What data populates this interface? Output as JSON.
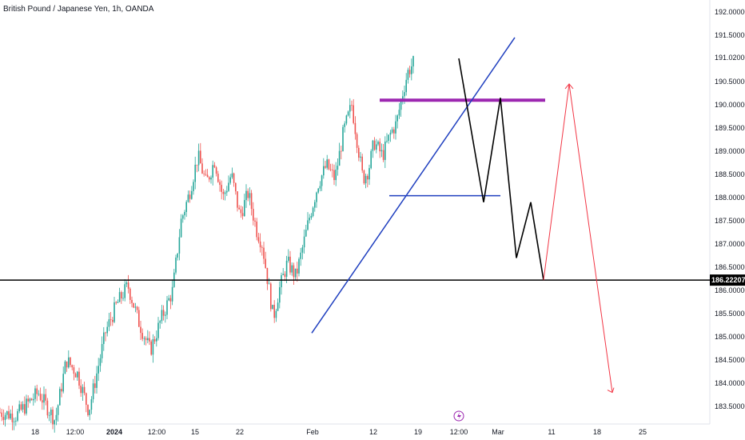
{
  "header": {
    "title": "British Pound / Japanese Yen, 1h, OANDA"
  },
  "colors": {
    "up_candle": "#26a69a",
    "down_candle": "#ef5350",
    "trendline": "#1f3fbf",
    "resistance": "#9c27b0",
    "support_line": "#000000",
    "projection_black": "#000000",
    "projection_red": "#f23645"
  },
  "price_label": "186.22207",
  "chart_data": {
    "type": "line",
    "title": "British Pound / Japanese Yen, 1h, OANDA",
    "ylim": [
      183.2,
      192.3
    ],
    "y_ticks": [
      "192.00000",
      "191.50000",
      "191.02000",
      "190.50000",
      "190.00000",
      "189.50000",
      "189.00000",
      "188.50000",
      "188.00000",
      "187.50000",
      "187.00000",
      "186.50000",
      "186.00000",
      "185.50000",
      "185.00000",
      "184.50000",
      "184.00000",
      "183.50000"
    ],
    "x_ticks": [
      "18",
      "12:00",
      "2024",
      "12:00",
      "15",
      "22",
      "Feb",
      "12",
      "19",
      "12:00",
      "Mar",
      "11",
      "18",
      "25"
    ],
    "price_path": [
      [
        -2,
        183.4
      ],
      [
        2,
        183.3
      ],
      [
        6,
        183.8
      ],
      [
        9,
        183.2
      ],
      [
        11,
        184.5
      ],
      [
        13,
        184.2
      ],
      [
        15,
        183.4
      ],
      [
        18,
        185.1
      ],
      [
        20,
        185.7
      ],
      [
        22,
        186.1
      ],
      [
        24,
        185.3
      ],
      [
        26,
        184.7
      ],
      [
        28,
        185.4
      ],
      [
        30,
        186.0
      ],
      [
        31.5,
        187.5
      ],
      [
        33,
        188.1
      ],
      [
        34.5,
        188.9
      ],
      [
        36,
        188.3
      ],
      [
        37.5,
        188.8
      ],
      [
        39,
        188.0
      ],
      [
        40.5,
        188.5
      ],
      [
        42,
        187.6
      ],
      [
        43.5,
        188.1
      ],
      [
        45,
        187.3
      ],
      [
        46,
        187.0
      ],
      [
        47,
        186.2
      ],
      [
        48,
        185.4
      ],
      [
        49,
        186.0
      ],
      [
        50.5,
        186.6
      ],
      [
        52,
        186.3
      ],
      [
        53,
        186.8
      ],
      [
        54.5,
        187.6
      ],
      [
        56,
        188.3
      ],
      [
        57.5,
        188.7
      ],
      [
        59,
        188.4
      ],
      [
        60.5,
        189.4
      ],
      [
        62,
        190.0
      ],
      [
        63,
        189.2
      ],
      [
        64,
        188.4
      ],
      [
        65,
        188.6
      ],
      [
        66,
        189.2
      ],
      [
        67.5,
        188.9
      ],
      [
        69,
        189.4
      ],
      [
        70,
        189.6
      ],
      [
        71,
        190.2
      ],
      [
        72,
        190.7
      ],
      [
        73,
        190.9
      ]
    ],
    "projection_black": [
      [
        73,
        191.0
      ],
      [
        77,
        187.9
      ],
      [
        80,
        190.15
      ],
      [
        84,
        186.7
      ],
      [
        87,
        187.9
      ],
      [
        90,
        186.22
      ]
    ],
    "projection_red": [
      [
        90,
        186.22
      ],
      [
        95,
        190.45
      ],
      [
        102,
        183.8
      ]
    ],
    "lines": {
      "support_level": 186.22207,
      "resistance": {
        "x": [
          63,
          84
        ],
        "y": 190.1
      },
      "neckline": {
        "x": [
          65,
          82
        ],
        "y": 188.04
      },
      "trendline": {
        "from": [
          52,
          185.08
        ],
        "to": [
          86,
          191.45
        ]
      }
    }
  }
}
